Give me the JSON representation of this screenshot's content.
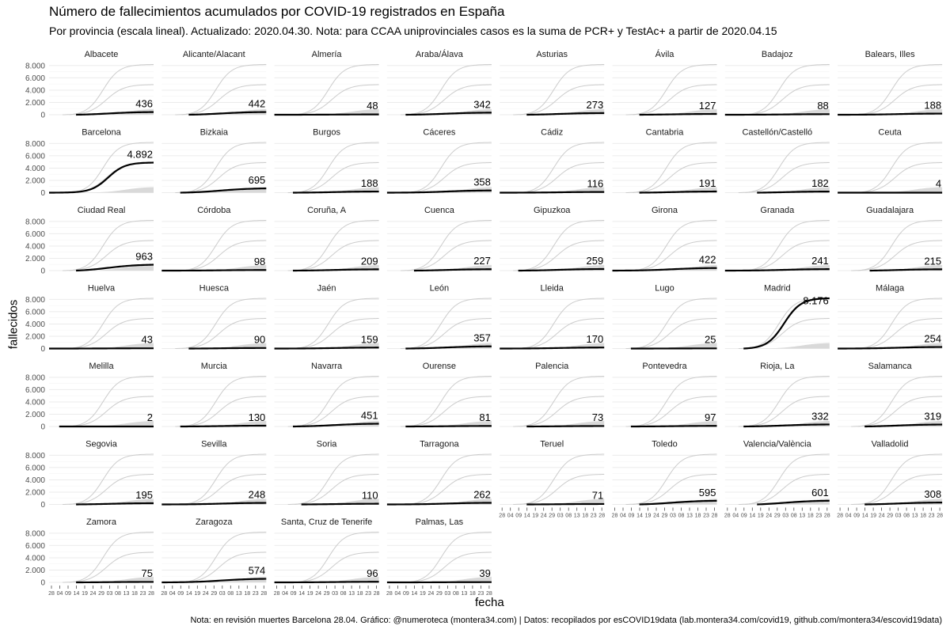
{
  "chart_data": {
    "type": "line",
    "title": "Número de fallecimientos acumulados por COVID-19 registrados en España",
    "subtitle": "Por provincia (escala lineal). Actualizado: 2020.04.30. Nota: para CCAA uniprovinciales casos es la suma de PCR+ y TestAc+ a partir de 2020.04.15",
    "xlabel": "fecha",
    "ylabel": "fallecidos",
    "caption": "Nota: en revisión muertes Barcelona 28.04. Gráfico: @numeroteca (montera34.com) | Datos: recopilados por esCOVID19data (lab.montera34.com/covid19, github.com/montera34/escovid19data)",
    "ylim": [
      0,
      8500
    ],
    "yticks": [
      0,
      2000,
      4000,
      6000,
      8000
    ],
    "ytick_labels": [
      "0",
      "2.000",
      "4.000",
      "6.000",
      "8.000"
    ],
    "xlim": [
      "2020-02-27",
      "2020-04-29"
    ],
    "xtick_labels": [
      "28",
      "04",
      "09",
      "14",
      "19",
      "24",
      "29",
      "03",
      "08",
      "13",
      "18",
      "23",
      "28"
    ],
    "grid": true,
    "series_colors": {
      "highlight": "#000000",
      "others": "#cccccc"
    },
    "panels": [
      {
        "name": "Albacete",
        "label": "436",
        "start": "2020-03-14"
      },
      {
        "name": "Alicante/Alacant",
        "label": "442",
        "start": "2020-03-14"
      },
      {
        "name": "Almería",
        "label": "48",
        "start": "2020-02-27"
      },
      {
        "name": "Araba/Álava",
        "label": "342",
        "start": "2020-03-09"
      },
      {
        "name": "Asturias",
        "label": "273",
        "start": "2020-03-14"
      },
      {
        "name": "Ávila",
        "label": "127",
        "start": "2020-03-14"
      },
      {
        "name": "Badajoz",
        "label": "88",
        "start": "2020-02-27"
      },
      {
        "name": "Balears, Illes",
        "label": "188",
        "start": "2020-02-27"
      },
      {
        "name": "Barcelona",
        "label": "4.892",
        "start": "2020-02-27"
      },
      {
        "name": "Bizkaia",
        "label": "695",
        "start": "2020-03-09"
      },
      {
        "name": "Burgos",
        "label": "188",
        "start": "2020-03-09"
      },
      {
        "name": "Cáceres",
        "label": "358",
        "start": "2020-02-27"
      },
      {
        "name": "Cádiz",
        "label": "116",
        "start": "2020-02-27"
      },
      {
        "name": "Cantabria",
        "label": "191",
        "start": "2020-03-14"
      },
      {
        "name": "Castellón/Castelló",
        "label": "182",
        "start": "2020-03-17"
      },
      {
        "name": "Ceuta",
        "label": "4",
        "start": "2020-02-27"
      },
      {
        "name": "Ciudad Real",
        "label": "963",
        "start": "2020-03-14"
      },
      {
        "name": "Córdoba",
        "label": "98",
        "start": "2020-02-27"
      },
      {
        "name": "Coruña, A",
        "label": "209",
        "start": "2020-03-09"
      },
      {
        "name": "Cuenca",
        "label": "227",
        "start": "2020-03-14"
      },
      {
        "name": "Gipuzkoa",
        "label": "259",
        "start": "2020-03-09"
      },
      {
        "name": "Girona",
        "label": "422",
        "start": "2020-02-27"
      },
      {
        "name": "Granada",
        "label": "241",
        "start": "2020-02-27"
      },
      {
        "name": "Guadalajara",
        "label": "215",
        "start": "2020-03-17"
      },
      {
        "name": "Huelva",
        "label": "43",
        "start": "2020-02-27"
      },
      {
        "name": "Huesca",
        "label": "90",
        "start": "2020-03-14"
      },
      {
        "name": "Jaén",
        "label": "159",
        "start": "2020-02-27"
      },
      {
        "name": "León",
        "label": "357",
        "start": "2020-03-09"
      },
      {
        "name": "Lleida",
        "label": "170",
        "start": "2020-02-27"
      },
      {
        "name": "Lugo",
        "label": "25",
        "start": "2020-03-09"
      },
      {
        "name": "Madrid",
        "label": "8.176",
        "start": "2020-03-09"
      },
      {
        "name": "Málaga",
        "label": "254",
        "start": "2020-02-27"
      },
      {
        "name": "Melilla",
        "label": "2",
        "start": "2020-03-04"
      },
      {
        "name": "Murcia",
        "label": "130",
        "start": "2020-03-09"
      },
      {
        "name": "Navarra",
        "label": "451",
        "start": "2020-03-09"
      },
      {
        "name": "Ourense",
        "label": "81",
        "start": "2020-03-09"
      },
      {
        "name": "Palencia",
        "label": "73",
        "start": "2020-03-14"
      },
      {
        "name": "Pontevedra",
        "label": "97",
        "start": "2020-03-09"
      },
      {
        "name": "Rioja, La",
        "label": "332",
        "start": "2020-03-09"
      },
      {
        "name": "Salamanca",
        "label": "319",
        "start": "2020-03-14"
      },
      {
        "name": "Segovia",
        "label": "195",
        "start": "2020-03-14"
      },
      {
        "name": "Sevilla",
        "label": "248",
        "start": "2020-02-27"
      },
      {
        "name": "Soria",
        "label": "110",
        "start": "2020-03-14"
      },
      {
        "name": "Tarragona",
        "label": "262",
        "start": "2020-02-27"
      },
      {
        "name": "Teruel",
        "label": "71",
        "start": "2020-03-14"
      },
      {
        "name": "Toledo",
        "label": "595",
        "start": "2020-03-14"
      },
      {
        "name": "Valencia/València",
        "label": "601",
        "start": "2020-03-17"
      },
      {
        "name": "Valladolid",
        "label": "308",
        "start": "2020-03-14"
      },
      {
        "name": "Zamora",
        "label": "75",
        "start": "2020-03-14"
      },
      {
        "name": "Zaragoza",
        "label": "574",
        "start": "2020-02-27"
      },
      {
        "name": "Santa, Cruz de Tenerife",
        "label": "96",
        "start": "2020-02-27"
      },
      {
        "name": "Palmas, Las",
        "label": "39",
        "start": "2020-02-27"
      }
    ]
  }
}
